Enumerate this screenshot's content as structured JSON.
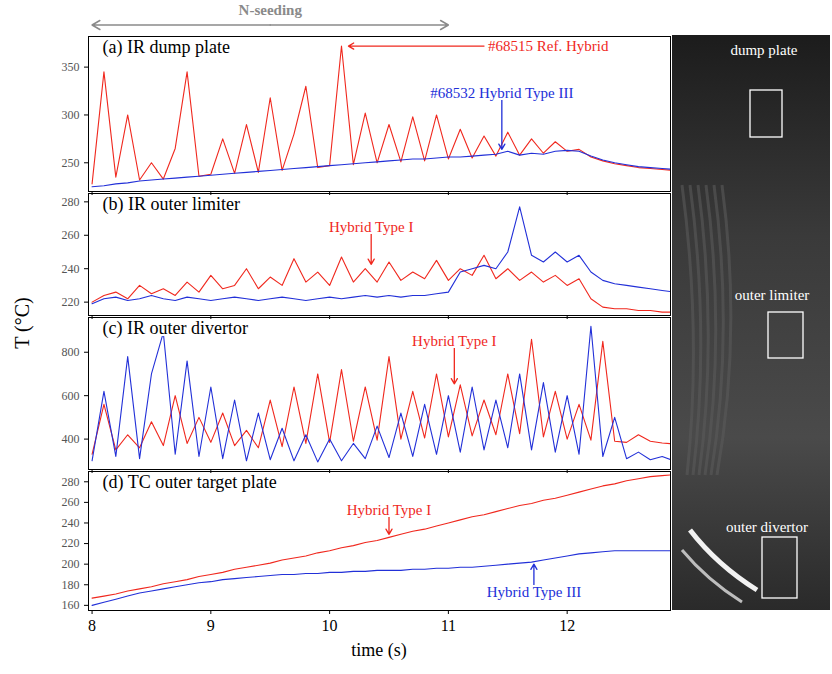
{
  "chart_data": {
    "type": "line",
    "xlabel": "time (s)",
    "ylabel": "T (°C)",
    "xlim": [
      7.97,
      12.87
    ],
    "xticks": [
      8,
      9,
      10,
      11,
      12
    ],
    "span": {
      "text": "N-seeding",
      "x1": 8,
      "x2": 11
    },
    "x": [
      8,
      8.1,
      8.2,
      8.3,
      8.4,
      8.5,
      8.6,
      8.7,
      8.8,
      8.9,
      9,
      9.1,
      9.2,
      9.3,
      9.4,
      9.5,
      9.6,
      9.7,
      9.8,
      9.9,
      10,
      10.1,
      10.2,
      10.3,
      10.4,
      10.5,
      10.6,
      10.7,
      10.8,
      10.9,
      11,
      11.1,
      11.2,
      11.3,
      11.4,
      11.5,
      11.6,
      11.7,
      11.8,
      11.9,
      12,
      12.1,
      12.2,
      12.3,
      12.4,
      12.5,
      12.6,
      12.7,
      12.8,
      12.9
    ],
    "panels": [
      {
        "title": "(a) IR dump plate",
        "ylim": [
          220,
          382
        ],
        "yticks": [
          250,
          300,
          350
        ],
        "tick_labels": "y",
        "series": [
          {
            "name": "#68515 Ref. Hybrid",
            "color": "#f0281e",
            "values": [
              228,
              345,
              235,
              300,
              232,
              250,
              233,
              265,
              345,
              236,
              238,
              275,
              239,
              290,
              240,
              318,
              242,
              280,
              330,
              245,
              247,
              372,
              248,
              302,
              250,
              290,
              251,
              298,
              252,
              300,
              254,
              285,
              255,
              278,
              257,
              282,
              258,
              275,
              260,
              272,
              262,
              264,
              256,
              252,
              249,
              247,
              245,
              244,
              243,
              242
            ]
          },
          {
            "name": "#68532 Hybrid Type III",
            "color": "#2230d8",
            "values": [
              225,
              226,
              228,
              229,
              231,
              232,
              233,
              234,
              235,
              236,
              237,
              238,
              239,
              240,
              241,
              242,
              243,
              244,
              245,
              246,
              247,
              248,
              249,
              250,
              251,
              252,
              253,
              254,
              254,
              255,
              256,
              256,
              257,
              258,
              259,
              262,
              258,
              260,
              259,
              262,
              263,
              262,
              257,
              253,
              250,
              248,
              246,
              245,
              244,
              243
            ]
          }
        ],
        "annotations": [
          {
            "series": 0,
            "x": 10.15,
            "y": 372,
            "tx": 11.3,
            "ty": 372
          },
          {
            "series": 1,
            "x": 11.45,
            "y": 263,
            "tx": 11.45,
            "ty": 318
          }
        ]
      },
      {
        "title": "(b) IR outer limiter",
        "ylim": [
          212,
          285
        ],
        "yticks": [
          220,
          240,
          260,
          280
        ],
        "tick_labels": "y",
        "series": [
          {
            "name": "Hybrid Type I",
            "color": "#f0281e",
            "values": [
              220,
              224,
              226,
              222,
              230,
              225,
              228,
              224,
              232,
              226,
              236,
              228,
              230,
              240,
              228,
              235,
              230,
              246,
              232,
              238,
              230,
              247,
              232,
              240,
              232,
              244,
              233,
              238,
              234,
              245,
              233,
              240,
              236,
              248,
              234,
              240,
              233,
              238,
              232,
              236,
              230,
              234,
              222,
              217,
              216,
              216,
              215,
              215,
              214,
              214
            ]
          },
          {
            "color": "#2230d8",
            "values": [
              219,
              222,
              223,
              221,
              222,
              224,
              222,
              221,
              223,
              222,
              221,
              222,
              223,
              222,
              221,
              222,
              223,
              222,
              221,
              222,
              223,
              222,
              223,
              224,
              223,
              224,
              223,
              224,
              224,
              225,
              226,
              238,
              240,
              242,
              240,
              250,
              277,
              248,
              244,
              250,
              244,
              248,
              238,
              233,
              231,
              230,
              229,
              228,
              227,
              226
            ]
          }
        ],
        "annotations": [
          {
            "series": 0,
            "x": 10.35,
            "y": 242,
            "tx": 10.35,
            "ty": 262
          }
        ]
      },
      {
        "title": "(c) IR outer divertor",
        "ylim": [
          260,
          960
        ],
        "yticks": [
          400,
          600,
          800
        ],
        "tick_labels": "y",
        "series": [
          {
            "name": "Hybrid Type I",
            "color": "#f0281e",
            "values": [
              330,
              560,
              350,
              420,
              360,
              480,
              370,
              600,
              380,
              500,
              385,
              520,
              370,
              440,
              360,
              580,
              365,
              640,
              380,
              700,
              385,
              720,
              390,
              640,
              395,
              780,
              400,
              620,
              405,
              700,
              410,
              650,
              415,
              580,
              420,
              700,
              425,
              860,
              410,
              620,
              400,
              560,
              395,
              850,
              390,
              385,
              420,
              390,
              382,
              378
            ]
          },
          {
            "color": "#2230d8",
            "values": [
              300,
              620,
              320,
              780,
              310,
              700,
              890,
              330,
              760,
              320,
              640,
              310,
              580,
              300,
              520,
              305,
              450,
              300,
              420,
              295,
              400,
              300,
              380,
              310,
              460,
              315,
              520,
              320,
              560,
              330,
              600,
              340,
              640,
              350,
              580,
              360,
              700,
              350,
              660,
              340,
              600,
              330,
              920,
              320,
              500,
              310,
              340,
              305,
              320,
              300
            ]
          }
        ],
        "annotations": [
          {
            "series": 0,
            "x": 11.05,
            "y": 650,
            "tx": 11.05,
            "ty": 830
          }
        ]
      },
      {
        "title": "(d) TC outer target plate",
        "ylim": [
          155,
          290
        ],
        "yticks": [
          160,
          180,
          200,
          220,
          240,
          260,
          280
        ],
        "tick_labels": true,
        "series": [
          {
            "name": "Hybrid Type I",
            "color": "#f0281e",
            "values": [
              167,
              169,
              171,
              174,
              176,
              178,
              181,
              183,
              185,
              188,
              190,
              192,
              195,
              197,
              199,
              201,
              204,
              206,
              208,
              211,
              213,
              216,
              218,
              221,
              223,
              226,
              229,
              232,
              234,
              237,
              240,
              243,
              246,
              248,
              251,
              254,
              257,
              259,
              262,
              264,
              267,
              270,
              273,
              276,
              278,
              281,
              283,
              285,
              286,
              287
            ]
          },
          {
            "name": "Hybrid Type III",
            "color": "#2230d8",
            "values": [
              160,
              163,
              166,
              169,
              172,
              174,
              176,
              178,
              180,
              182,
              183,
              185,
              186,
              187,
              188,
              189,
              190,
              190,
              191,
              191,
              192,
              192,
              193,
              193,
              194,
              194,
              194,
              195,
              195,
              196,
              196,
              197,
              197,
              198,
              199,
              200,
              201,
              202,
              204,
              206,
              208,
              210,
              211,
              212,
              213,
              213,
              213,
              213,
              213,
              213
            ]
          }
        ],
        "annotations": [
          {
            "series": 0,
            "x": 10.5,
            "y": 228,
            "tx": 10.5,
            "ty": 248
          },
          {
            "series": 1,
            "x": 11.72,
            "y": 201,
            "tx": 11.72,
            "ty": 178
          }
        ]
      }
    ]
  },
  "image": {
    "labels": [
      "dump plate",
      "outer limiter",
      "outer divertor"
    ]
  }
}
